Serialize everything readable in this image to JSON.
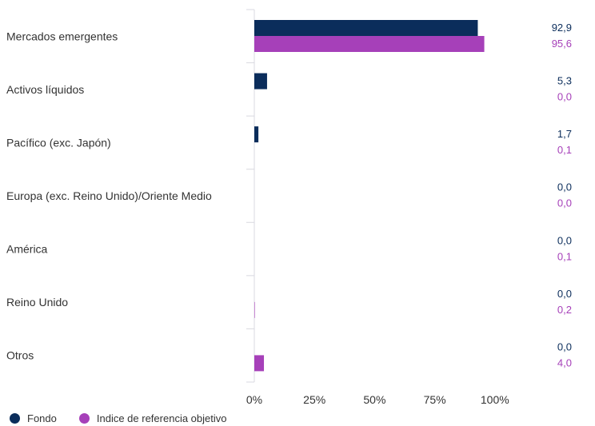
{
  "chart_data": {
    "type": "bar",
    "orientation": "horizontal",
    "categories": [
      "Mercados emergentes",
      "Activos líquidos",
      "Pacífico (exc. Japón)",
      "Europa (exc. Reino Unido)/Oriente Medio",
      "América",
      "Reino Unido",
      "Otros"
    ],
    "series": [
      {
        "name": "Fondo",
        "color": "#0b2d5b",
        "values": [
          92.9,
          5.3,
          1.7,
          0.0,
          0.0,
          0.0,
          0.0
        ],
        "labels": [
          "92,9",
          "5,3",
          "1,7",
          "0,0",
          "0,0",
          "0,0",
          "0,0"
        ]
      },
      {
        "name": "Indice de referencia objetivo",
        "color": "#a640b9",
        "values": [
          95.6,
          0.0,
          0.1,
          0.0,
          0.1,
          0.2,
          4.0
        ],
        "labels": [
          "95,6",
          "0,0",
          "0,1",
          "0,0",
          "0,1",
          "0,2",
          "4,0"
        ]
      }
    ],
    "xlim": [
      0,
      125
    ],
    "xticks": [
      0,
      25,
      50,
      75,
      100
    ],
    "xtick_labels": [
      "0%",
      "25%",
      "50%",
      "75%",
      "100%"
    ],
    "legend_position": "bottom-left",
    "grid": false
  }
}
